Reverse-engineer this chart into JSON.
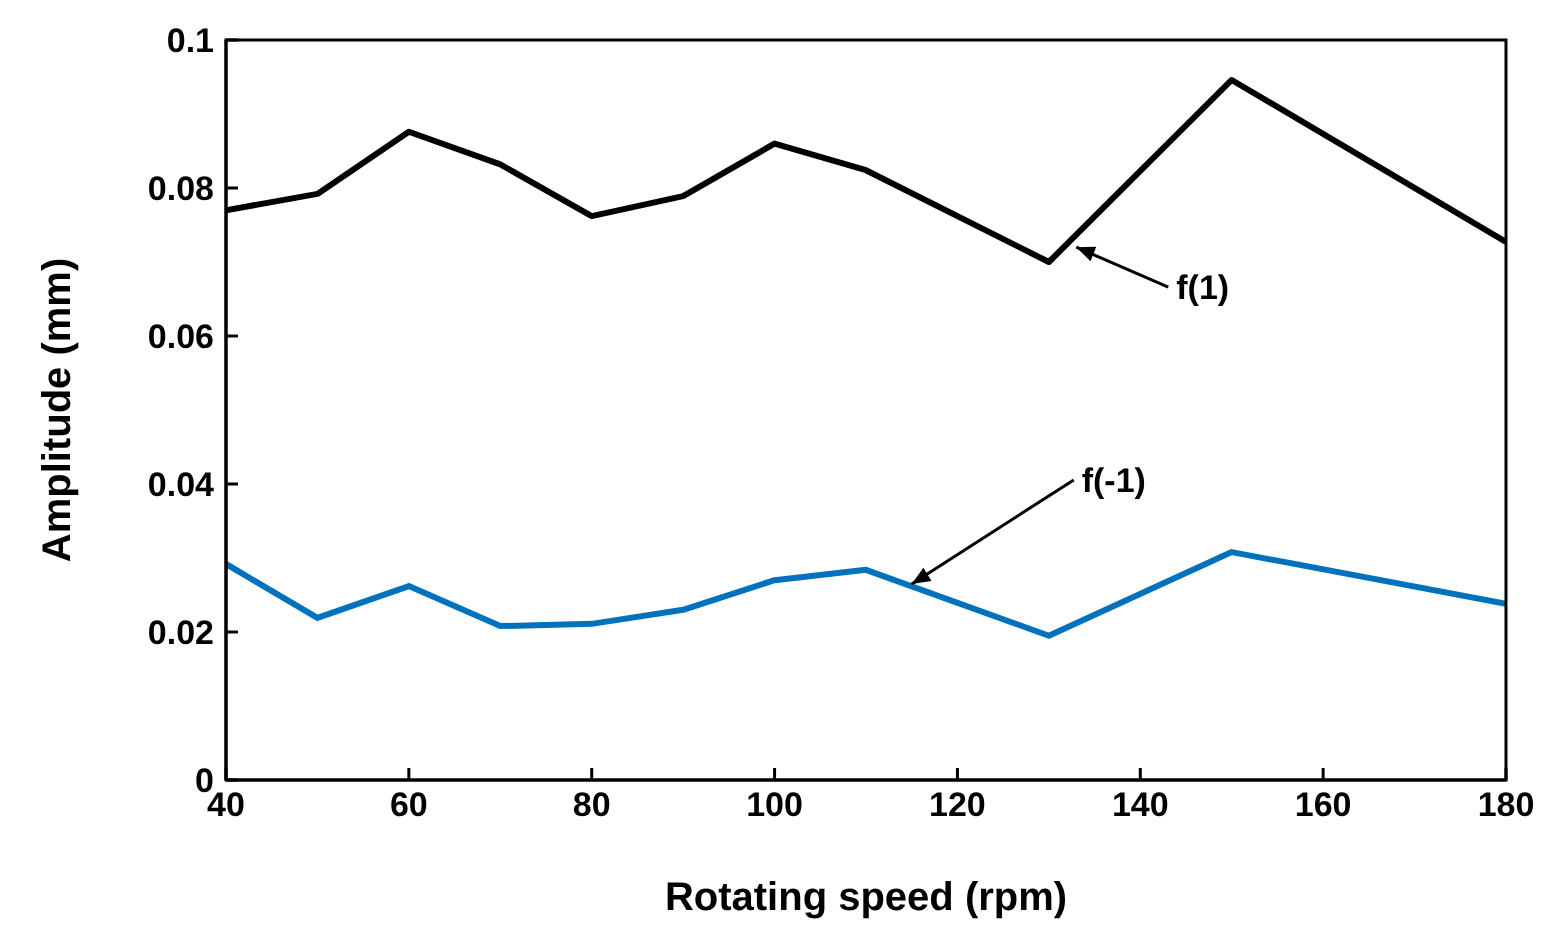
{
  "chart_data": {
    "type": "line",
    "xlabel": "Rotating speed (rpm)",
    "ylabel": "Amplitude (mm)",
    "x": [
      40,
      50,
      60,
      70,
      80,
      90,
      100,
      110,
      130,
      150,
      180
    ],
    "series": [
      {
        "color": "#000000",
        "values": [
          0.077,
          0.0792,
          0.0876,
          0.0832,
          0.0762,
          0.0789,
          0.086,
          0.0824,
          0.07,
          0.0946,
          0.0727
        ]
      },
      {
        "color": "#0072bd",
        "values": [
          0.0292,
          0.0219,
          0.0262,
          0.0208,
          0.0211,
          0.023,
          0.027,
          0.0284,
          0.0195,
          0.0308,
          0.0238
        ]
      }
    ],
    "xlim": [
      40,
      180
    ],
    "xticks": [
      40,
      60,
      80,
      100,
      120,
      140,
      160,
      180
    ],
    "ylim": [
      0,
      0.1
    ],
    "yticks": [
      0,
      0.02,
      0.04,
      0.06,
      0.08,
      0.1
    ],
    "grid": false,
    "legend": false,
    "marker": "none",
    "line_style": "solid",
    "annotations": [
      {
        "text": "f(1)",
        "x": 133,
        "y": 0.072
      },
      {
        "text": "f(-1)",
        "x": 115,
        "y": 0.0265
      }
    ]
  }
}
